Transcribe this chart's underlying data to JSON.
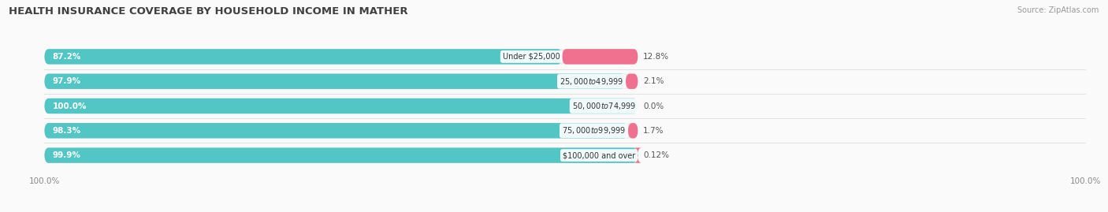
{
  "title": "HEALTH INSURANCE COVERAGE BY HOUSEHOLD INCOME IN MATHER",
  "source": "Source: ZipAtlas.com",
  "categories": [
    "Under $25,000",
    "$25,000 to $49,999",
    "$50,000 to $74,999",
    "$75,000 to $99,999",
    "$100,000 and over"
  ],
  "with_coverage": [
    87.2,
    97.9,
    100.0,
    98.3,
    99.9
  ],
  "without_coverage": [
    12.8,
    2.1,
    0.0,
    1.7,
    0.12
  ],
  "with_color": "#52C5C5",
  "without_color": "#F07090",
  "bar_bg_color": "#EBEBEB",
  "background_color": "#FAFAFA",
  "title_fontsize": 9.5,
  "label_fontsize": 7.5,
  "cat_fontsize": 7.0,
  "legend_fontsize": 8,
  "bar_height": 0.62,
  "total_bar_width": 57.0,
  "xlim": [
    0,
    100
  ]
}
